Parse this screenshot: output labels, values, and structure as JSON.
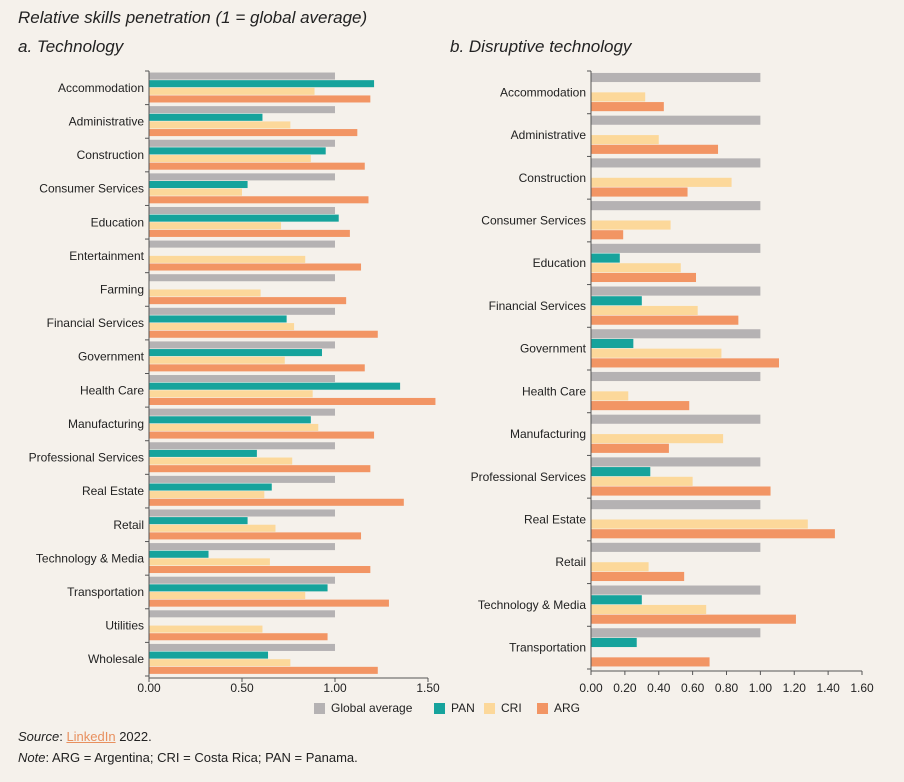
{
  "title": "Relative skills penetration (1 = global average)",
  "colors": {
    "global": "#b5b2b3",
    "pan": "#16a39c",
    "cri": "#fcd89a",
    "arg": "#f29564",
    "axis": "#555555"
  },
  "legend": [
    {
      "name": "Global average",
      "color": "#b5b2b3"
    },
    {
      "name": "PAN",
      "color": "#16a39c"
    },
    {
      "name": "CRI",
      "color": "#fcd89a"
    },
    {
      "name": "ARG",
      "color": "#f29564"
    }
  ],
  "chart_data": [
    {
      "type": "bar",
      "orientation": "horizontal",
      "title": "a. Technology",
      "xlim": [
        0,
        1.5
      ],
      "xticks": [
        "0.00",
        "0.50",
        "1.00",
        "1.50"
      ],
      "categories": [
        "Accommodation",
        "Administrative",
        "Construction",
        "Consumer Services",
        "Education",
        "Entertainment",
        "Farming",
        "Financial Services",
        "Government",
        "Health Care",
        "Manufacturing",
        "Professional Services",
        "Real Estate",
        "Retail",
        "Technology & Media",
        "Transportation",
        "Utilities",
        "Wholesale"
      ],
      "series": [
        {
          "name": "Global average",
          "values": [
            1,
            1,
            1,
            1,
            1,
            1,
            1,
            1,
            1,
            1,
            1,
            1,
            1,
            1,
            1,
            1,
            1,
            1
          ]
        },
        {
          "name": "PAN",
          "values": [
            1.21,
            0.61,
            0.95,
            0.53,
            1.02,
            null,
            null,
            0.74,
            0.93,
            1.35,
            0.87,
            0.58,
            0.66,
            0.53,
            0.32,
            0.96,
            null,
            0.64
          ]
        },
        {
          "name": "CRI",
          "values": [
            0.89,
            0.76,
            0.87,
            0.5,
            0.71,
            0.84,
            0.6,
            0.78,
            0.73,
            0.88,
            0.91,
            0.77,
            0.62,
            0.68,
            0.65,
            0.84,
            0.61,
            0.76
          ]
        },
        {
          "name": "ARG",
          "values": [
            1.19,
            1.12,
            1.16,
            1.18,
            1.08,
            1.14,
            1.06,
            1.23,
            1.16,
            1.54,
            1.21,
            1.19,
            1.37,
            1.14,
            1.19,
            1.29,
            0.96,
            1.23
          ]
        }
      ]
    },
    {
      "type": "bar",
      "orientation": "horizontal",
      "title": "b. Disruptive technology",
      "xlim": [
        0,
        1.6
      ],
      "xticks": [
        "0.00",
        "0.20",
        "0.40",
        "0.60",
        "0.80",
        "1.00",
        "1.20",
        "1.40",
        "1.60"
      ],
      "categories": [
        "Accommodation",
        "Administrative",
        "Construction",
        "Consumer Services",
        "Education",
        "Financial Services",
        "Government",
        "Health Care",
        "Manufacturing",
        "Professional Services",
        "Real Estate",
        "Retail",
        "Technology & Media",
        "Transportation"
      ],
      "series": [
        {
          "name": "Global average",
          "values": [
            1,
            1,
            1,
            1,
            1,
            1,
            1,
            1,
            1,
            1,
            1,
            1,
            1,
            1
          ]
        },
        {
          "name": "PAN",
          "values": [
            null,
            null,
            null,
            null,
            0.17,
            0.3,
            0.25,
            null,
            null,
            0.35,
            null,
            null,
            0.3,
            0.27
          ]
        },
        {
          "name": "CRI",
          "values": [
            0.32,
            0.4,
            0.83,
            0.47,
            0.53,
            0.63,
            0.77,
            0.22,
            0.78,
            0.6,
            1.28,
            0.34,
            0.68,
            null
          ]
        },
        {
          "name": "ARG",
          "values": [
            0.43,
            0.75,
            0.57,
            0.19,
            0.62,
            0.87,
            1.11,
            0.58,
            0.46,
            1.06,
            1.44,
            0.55,
            1.21,
            0.7
          ]
        }
      ]
    }
  ],
  "footer": {
    "source_label": "Source",
    "source_sep": ": ",
    "source_link": "LinkedIn",
    "source_year": " 2022.",
    "note_label": "Note",
    "note_text": ": ARG = Argentina; CRI = Costa Rica; PAN = Panama."
  }
}
